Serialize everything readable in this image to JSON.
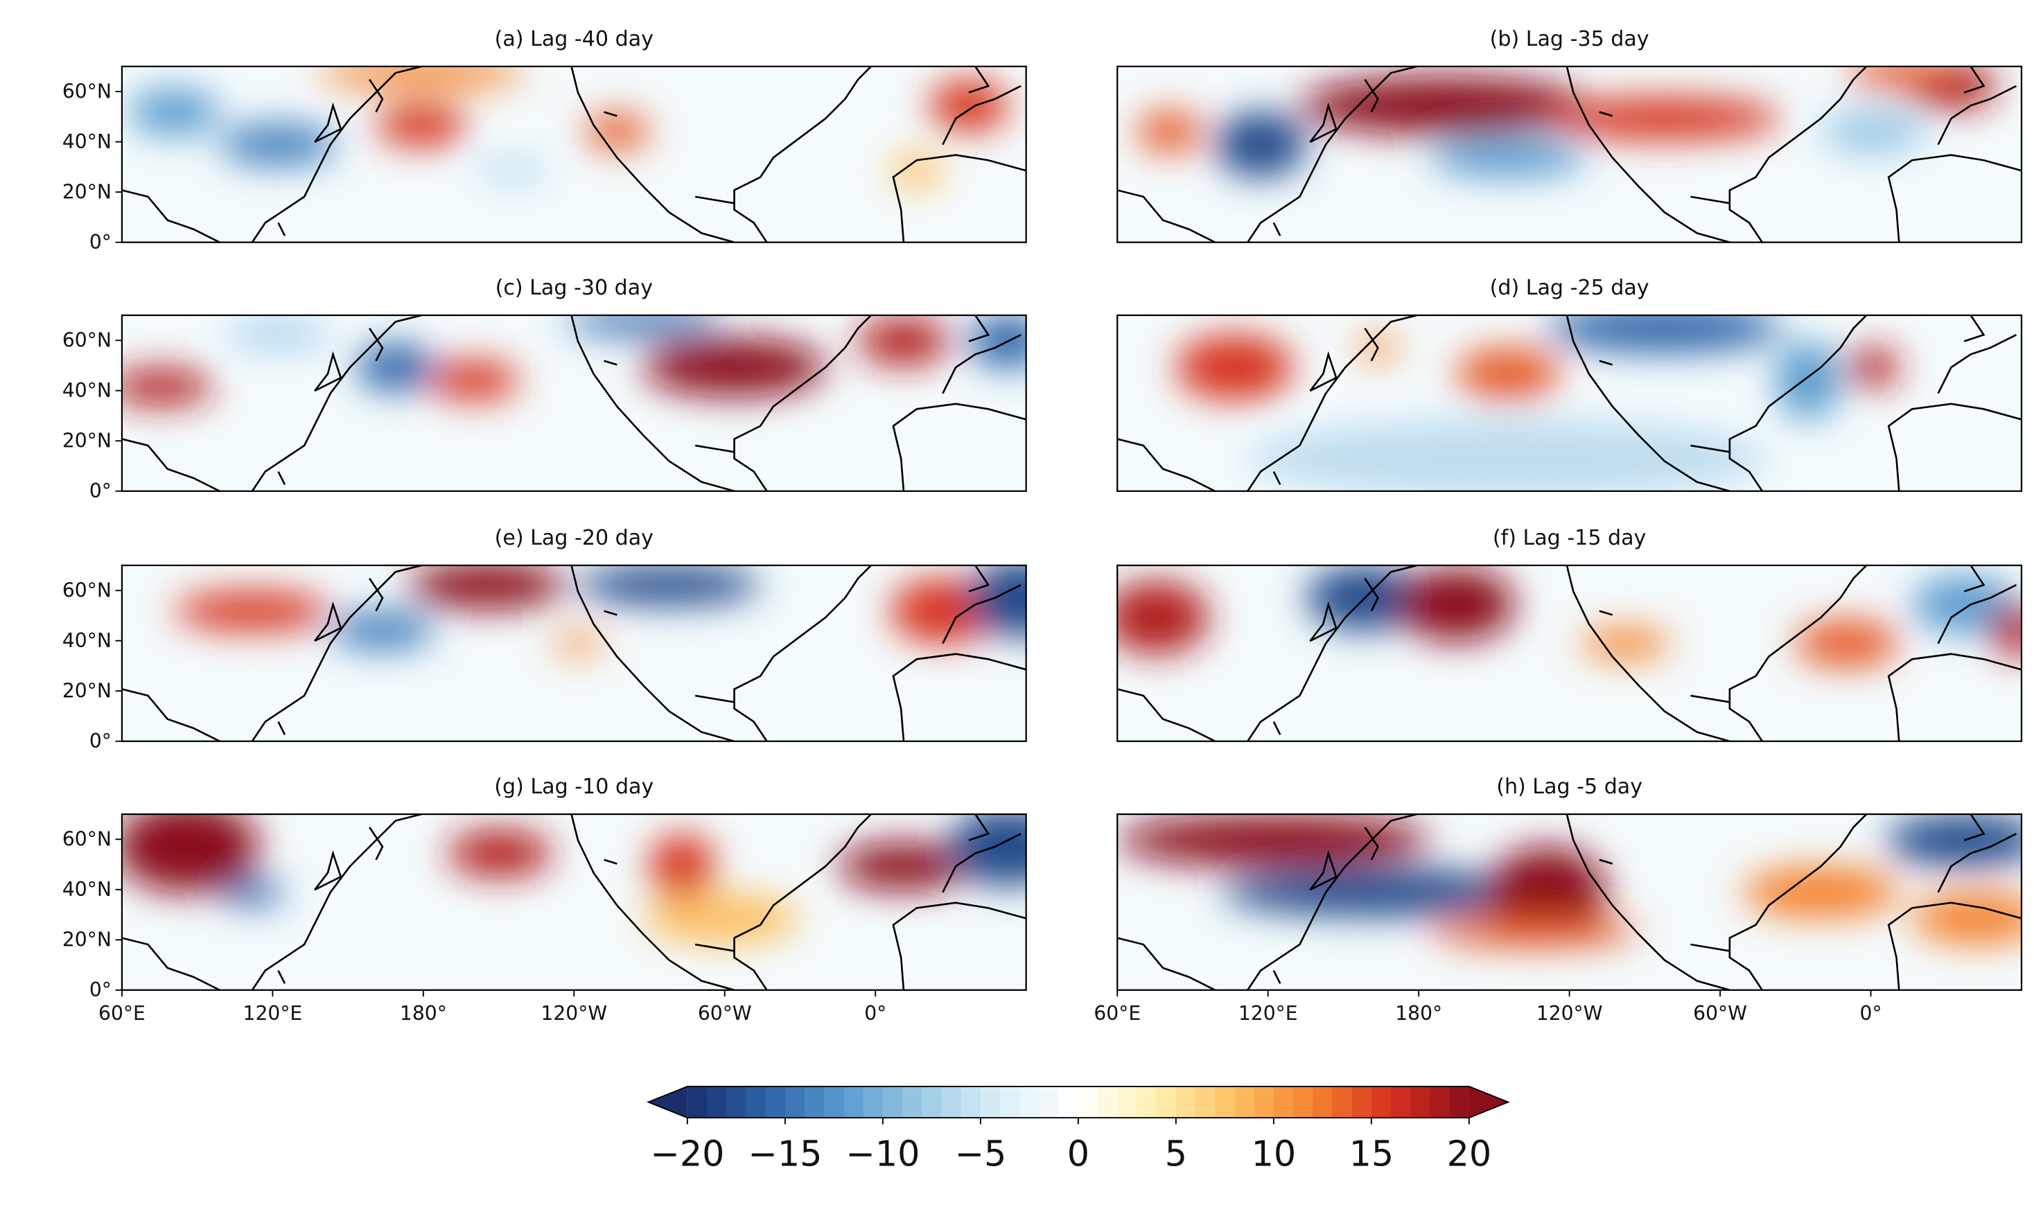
{
  "panels": [
    {
      "title": "(a) Lag -40 day"
    },
    {
      "title": "(b) Lag -35 day"
    },
    {
      "title": "(c) Lag -30 day"
    },
    {
      "title": "(d) Lag -25 day"
    },
    {
      "title": "(e) Lag -20 day"
    },
    {
      "title": "(f) Lag -15 day"
    },
    {
      "title": "(g) Lag -10 day"
    },
    {
      "title": "(h) Lag -5 day"
    }
  ],
  "lonlim": [
    60,
    420
  ],
  "lon_ticks": [
    {
      "value": 60,
      "label": "60°E"
    },
    {
      "value": 120,
      "label": "120°E"
    },
    {
      "value": 180,
      "label": "180°"
    },
    {
      "value": 240,
      "label": "120°W"
    },
    {
      "value": 300,
      "label": "60°W"
    },
    {
      "value": 360,
      "label": "0°"
    }
  ],
  "latlim": [
    0,
    70
  ],
  "lat_ticks": [
    {
      "value": 0,
      "label": "0°"
    },
    {
      "value": 20,
      "label": "20°N"
    },
    {
      "value": 40,
      "label": "40°N"
    },
    {
      "value": 60,
      "label": "60°N"
    }
  ],
  "colorbar": {
    "lim": [
      -20,
      20
    ],
    "ticks": [
      {
        "value": -20,
        "label": "−20"
      },
      {
        "value": -15,
        "label": "−15"
      },
      {
        "value": -10,
        "label": "−10"
      },
      {
        "value": -5,
        "label": "−5"
      },
      0,
      5,
      10,
      15,
      20
    ],
    "colors": [
      "#1a2e6b",
      "#2c62a8",
      "#5a9bcf",
      "#9dcae6",
      "#dcf0f8",
      "#ffffff",
      "#fdf0b0",
      "#fdc063",
      "#f5822e",
      "#d7301f",
      "#8b0e1a"
    ]
  }
}
